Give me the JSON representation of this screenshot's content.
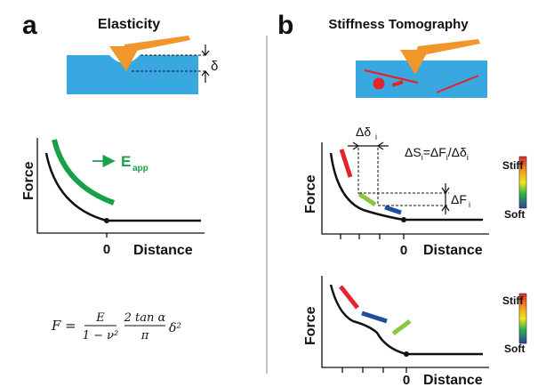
{
  "panel_a": {
    "letter": "a",
    "title": "Elasticity",
    "depth_symbol": "δ",
    "y_label": "Force",
    "x_label": "Distance",
    "x_tick_zero": "0",
    "e_app_main": "E",
    "e_app_sub": "app",
    "formula": {
      "lhs": "F =",
      "f1_num": "E",
      "f1_den": "1 − ν²",
      "f2_num": "2 tan α",
      "f2_den": "π",
      "tail": "δ²"
    }
  },
  "panel_b": {
    "letter": "b",
    "title": "Stiffness Tomography",
    "delta_delta_main": "Δδ",
    "delta_delta_sub": "i",
    "relation": {
      "p1": "ΔS",
      "s1": "i",
      "p2": "=ΔF",
      "s2": "i",
      "p3": "/Δδ",
      "s3": "i"
    },
    "delta_f_main": "ΔF",
    "delta_f_sub": "i",
    "y_label": "Force",
    "x_label": "Distance",
    "x_tick_zero": "0",
    "scale_top": "Stiff",
    "scale_bottom": "Soft",
    "lower_y_label": "Force",
    "lower_x_label": "Distance",
    "lower_x_tick_zero": "0",
    "lower_scale_top": "Stiff",
    "lower_scale_bottom": "Soft"
  },
  "colors": {
    "substrate": "#3aa8e0",
    "tip": "#f0962a",
    "modulus": "#19a14a",
    "stiff": "#e3242b",
    "mid": "#8cc63f",
    "soft": "#1f4ea1"
  }
}
